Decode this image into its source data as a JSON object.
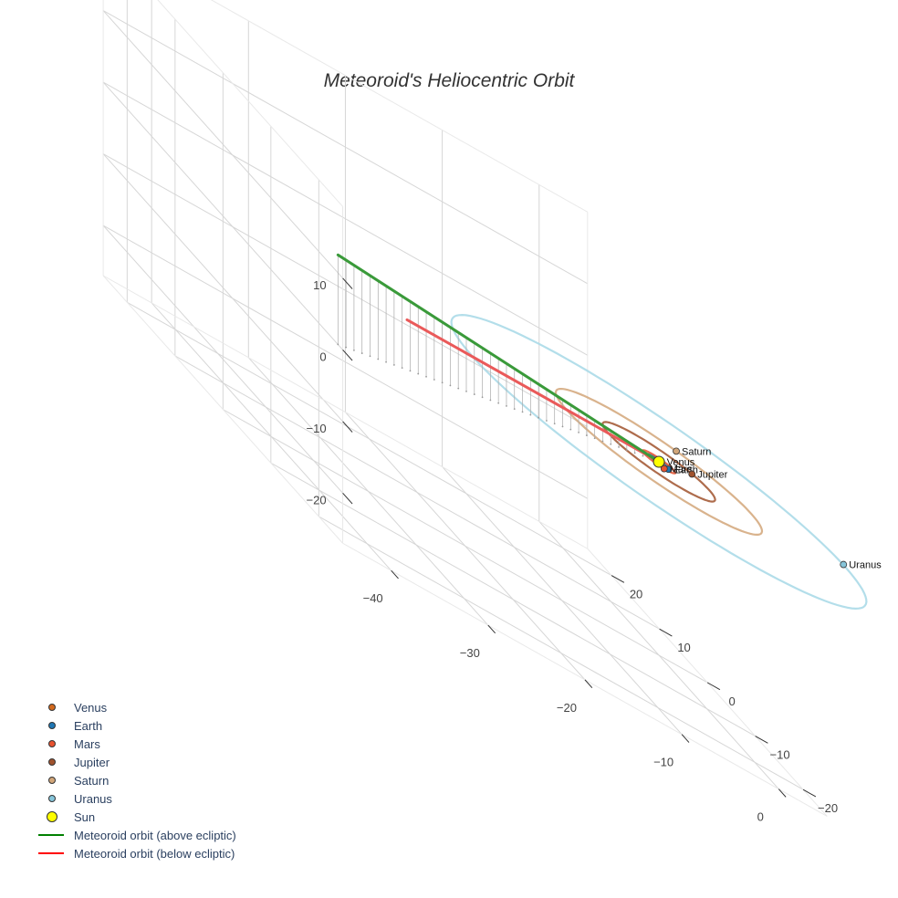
{
  "chart_data": {
    "type": "3d-scatter-line",
    "title": "Meteoroid's Heliocentric Orbit",
    "axes": {
      "x": {
        "ticks": [
          -40,
          -30,
          -20,
          -10,
          0
        ],
        "labels": [
          "−40",
          "−30",
          "−20",
          "−10",
          "0"
        ],
        "range": [
          -45,
          5
        ]
      },
      "y": {
        "ticks": [
          -20,
          -10,
          0,
          10,
          20
        ],
        "labels": [
          "−20",
          "−10",
          "0",
          "10",
          "20"
        ],
        "range": [
          -25,
          25
        ]
      },
      "z": {
        "ticks": [
          -20,
          -10,
          0,
          10
        ],
        "labels": [
          "−20",
          "−10",
          "0",
          "10"
        ],
        "range": [
          -27,
          20
        ]
      }
    },
    "orbits": [
      {
        "name": "Venus",
        "radius": 0.72,
        "color": "#d2691e"
      },
      {
        "name": "Earth",
        "radius": 1.0,
        "color": "#1f77b4"
      },
      {
        "name": "Mars",
        "radius": 1.52,
        "color": "#e8522f"
      },
      {
        "name": "Jupiter",
        "radius": 5.2,
        "color": "#a0522d"
      },
      {
        "name": "Saturn",
        "radius": 9.54,
        "color": "#d2a679"
      },
      {
        "name": "Uranus",
        "radius": 19.2,
        "color": "#a6d8e6"
      }
    ],
    "planets": [
      {
        "name": "Venus",
        "x": 0.5,
        "y": 0.5,
        "z": 0,
        "color": "#d2691e"
      },
      {
        "name": "Earth",
        "x": 0.6,
        "y": -0.8,
        "z": 0,
        "color": "#1f77b4"
      },
      {
        "name": "Mars",
        "x": -0.2,
        "y": -1.5,
        "z": 0,
        "color": "#e8522f"
      },
      {
        "name": "Jupiter",
        "x": 4.6,
        "y": 2.4,
        "z": 0,
        "color": "#a0522d"
      },
      {
        "name": "Saturn",
        "x": 5.6,
        "y": 7.7,
        "z": 0,
        "color": "#d2a679"
      },
      {
        "name": "Uranus",
        "x": 19.3,
        "y": 0.5,
        "z": 0,
        "color": "#86c5da"
      }
    ],
    "sun": {
      "name": "Sun",
      "x": 0,
      "y": 0,
      "z": 0,
      "color": "#ffff00"
    },
    "meteoroid": {
      "above": {
        "name": "Meteoroid orbit (above ecliptic)",
        "color": "green",
        "start": [
          -45,
          -24,
          12.5
        ],
        "end": [
          0,
          0,
          0
        ]
      },
      "below": {
        "name": "Meteoroid orbit (below ecliptic)",
        "color": "red",
        "start": [
          -26,
          0,
          0
        ],
        "end": [
          0,
          0,
          0
        ]
      }
    },
    "legend": [
      {
        "label": "Venus",
        "kind": "dot",
        "color": "#d2691e"
      },
      {
        "label": "Earth",
        "kind": "dot",
        "color": "#1f77b4"
      },
      {
        "label": "Mars",
        "kind": "dot",
        "color": "#e8522f"
      },
      {
        "label": "Jupiter",
        "kind": "dot",
        "color": "#a0522d"
      },
      {
        "label": "Saturn",
        "kind": "dot",
        "color": "#d2a679"
      },
      {
        "label": "Uranus",
        "kind": "dot",
        "color": "#86c5da"
      },
      {
        "label": "Sun",
        "kind": "sun",
        "color": "#ffff00"
      },
      {
        "label": "Meteoroid orbit (above ecliptic)",
        "kind": "line",
        "color": "green"
      },
      {
        "label": "Meteoroid orbit (below ecliptic)",
        "kind": "line",
        "color": "red"
      }
    ]
  }
}
